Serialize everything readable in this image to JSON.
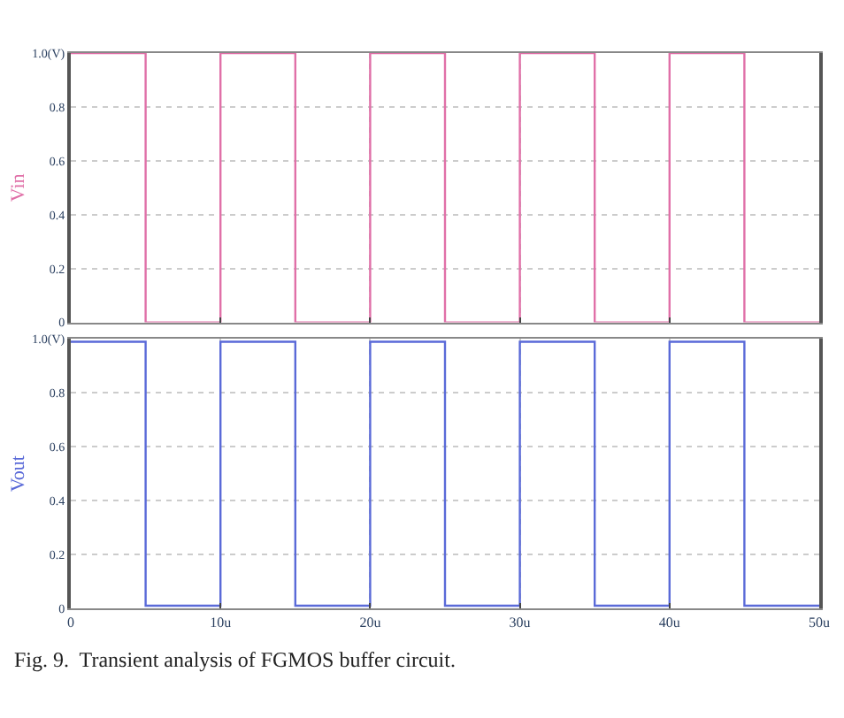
{
  "chart_data": [
    {
      "type": "line",
      "ylabel": "Vin",
      "x": [
        0,
        5,
        5,
        10,
        10,
        15,
        15,
        20,
        20,
        25,
        25,
        30,
        30,
        35,
        35,
        40,
        40,
        45,
        45,
        50
      ],
      "series": [
        {
          "color": "#e070a8",
          "values": [
            1.0,
            1.0,
            0.0,
            0.0,
            1.0,
            1.0,
            0.0,
            0.0,
            1.0,
            1.0,
            0.0,
            0.0,
            1.0,
            1.0,
            0.0,
            0.0,
            1.0,
            1.0,
            0.0,
            0.0
          ]
        }
      ],
      "xlim": [
        0,
        50
      ],
      "xticks": [
        0,
        10,
        20,
        30,
        40,
        50
      ],
      "ylim": [
        0,
        1.0
      ],
      "yticks": [
        0,
        0.2,
        0.4,
        0.6,
        0.8,
        {
          "value": 1.0,
          "label": "1.0(V)"
        }
      ],
      "tick_labels": "y",
      "grid": true
    },
    {
      "type": "line",
      "ylabel": "Vout",
      "x": [
        0,
        5,
        5,
        10,
        10,
        15,
        15,
        20,
        20,
        25,
        25,
        30,
        30,
        35,
        35,
        40,
        40,
        45,
        45,
        50
      ],
      "series": [
        {
          "color": "#5a6ad8",
          "values": [
            0.99,
            0.99,
            0.01,
            0.01,
            0.99,
            0.99,
            0.01,
            0.01,
            0.99,
            0.99,
            0.01,
            0.01,
            0.99,
            0.99,
            0.01,
            0.01,
            0.99,
            0.99,
            0.01,
            0.01
          ]
        }
      ],
      "xlim": [
        0,
        50
      ],
      "xticks": [
        0,
        {
          "value": 10,
          "label": "10u"
        },
        {
          "value": 20,
          "label": "20u"
        },
        {
          "value": 30,
          "label": "30u"
        },
        {
          "value": 40,
          "label": "40u"
        },
        {
          "value": 50,
          "label": "50u"
        }
      ],
      "ylim": [
        0,
        1.0
      ],
      "yticks": [
        0,
        0.2,
        0.4,
        0.6,
        0.8,
        {
          "value": 1.0,
          "label": "1.0(V)"
        }
      ],
      "grid": true,
      "annotations": [
        "Fig. 9.  Transient analysis of FGMOS buffer circuit."
      ]
    }
  ]
}
